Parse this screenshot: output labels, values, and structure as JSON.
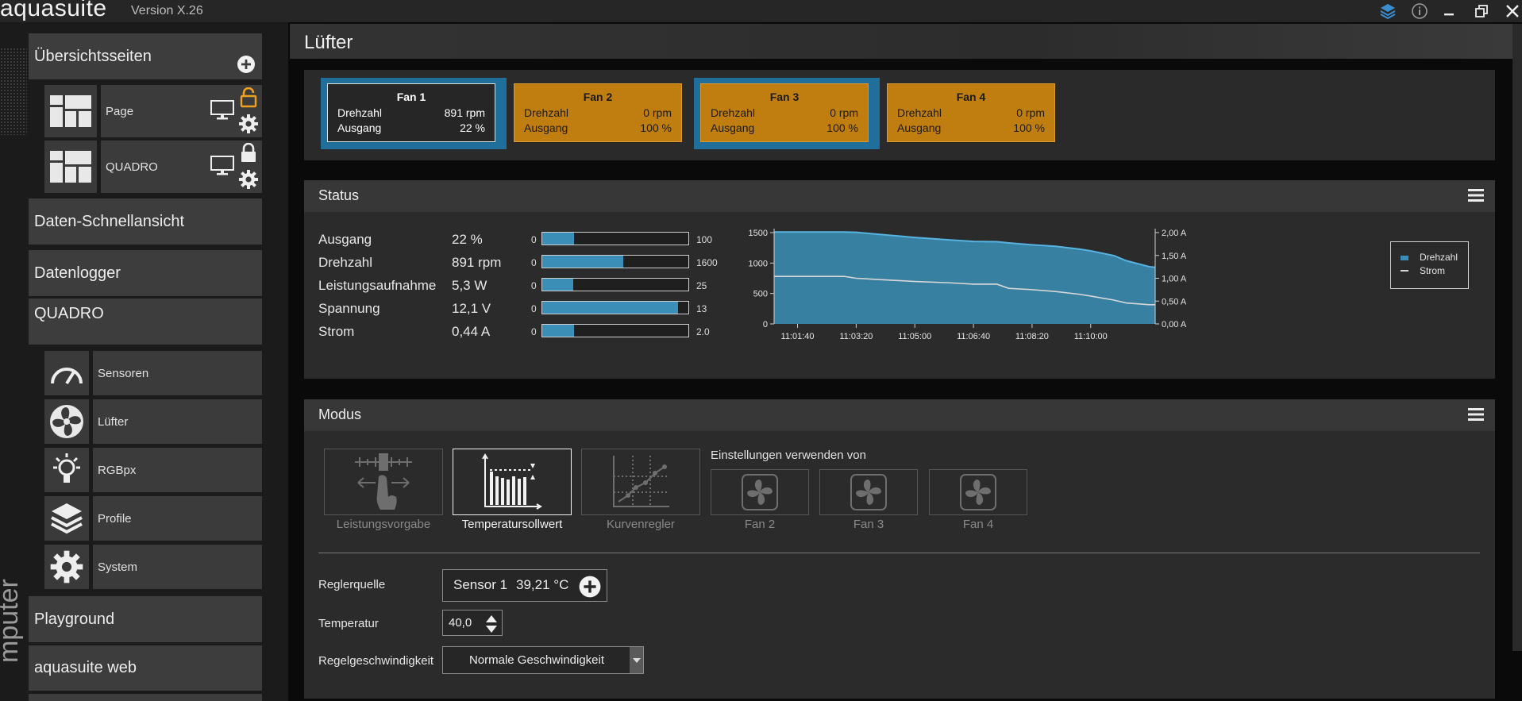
{
  "app": {
    "name": "aquasuite",
    "version": "Version X.26"
  },
  "side_vertical_label": "mputer",
  "sidebar": {
    "overview_title": "Übersichtsseiten",
    "pages": [
      {
        "label": "Page",
        "lock": "unlocked"
      },
      {
        "label": "QUADRO",
        "lock": "locked"
      }
    ],
    "sections": {
      "quick_view": "Daten-Schnellansicht",
      "datalogger": "Datenlogger",
      "device": "QUADRO",
      "playground": "Playground",
      "web": "aquasuite web"
    },
    "device_items": [
      {
        "label": "Sensoren",
        "icon": "gauge-icon"
      },
      {
        "label": "Lüfter",
        "icon": "fan-icon"
      },
      {
        "label": "RGBpx",
        "icon": "lightbulb-icon"
      },
      {
        "label": "Profile",
        "icon": "layers-icon"
      },
      {
        "label": "System",
        "icon": "gear-icon"
      }
    ]
  },
  "page_title": "Lüfter",
  "fans": [
    {
      "name": "Fan 1",
      "speed_label": "Drehzahl",
      "speed": "891 rpm",
      "output_label": "Ausgang",
      "output": "22 %",
      "selected": true
    },
    {
      "name": "Fan 2",
      "speed_label": "Drehzahl",
      "speed": "0 rpm",
      "output_label": "Ausgang",
      "output": "100 %",
      "selected": false
    },
    {
      "name": "Fan 3",
      "speed_label": "Drehzahl",
      "speed": "0 rpm",
      "output_label": "Ausgang",
      "output": "100 %",
      "selected": false
    },
    {
      "name": "Fan 4",
      "speed_label": "Drehzahl",
      "speed": "0 rpm",
      "output_label": "Ausgang",
      "output": "100 %",
      "selected": false
    }
  ],
  "status": {
    "title": "Status",
    "rows": [
      {
        "name": "Ausgang",
        "value": "22 %",
        "min": "0",
        "max": "100",
        "fraction": 0.22
      },
      {
        "name": "Drehzahl",
        "value": "891 rpm",
        "min": "0",
        "max": "1600",
        "fraction": 0.557
      },
      {
        "name": "Leistungsaufnahme",
        "value": "5,3 W",
        "min": "0",
        "max": "25",
        "fraction": 0.212
      },
      {
        "name": "Spannung",
        "value": "12,1 V",
        "min": "0",
        "max": "13",
        "fraction": 0.93
      },
      {
        "name": "Strom",
        "value": "0,44 A",
        "min": "0",
        "max": "2.0",
        "fraction": 0.22
      }
    ]
  },
  "chart_data": {
    "type": "area",
    "x": [
      "11:01:00",
      "11:02:00",
      "11:03:00",
      "11:03:20",
      "11:04:00",
      "11:05:00",
      "11:06:00",
      "11:06:40",
      "11:07:20",
      "11:07:40",
      "11:08:20",
      "11:09:00",
      "11:09:40",
      "11:10:00",
      "11:10:40",
      "11:11:00",
      "11:11:40",
      "11:11:50"
    ],
    "x_tick_labels": [
      "11:01:40",
      "11:03:20",
      "11:05:00",
      "11:06:40",
      "11:08:20",
      "11:10:00"
    ],
    "series": [
      {
        "name": "Drehzahl",
        "axis": "left",
        "color": "#3b8fb7",
        "values": [
          1510,
          1510,
          1510,
          1505,
          1470,
          1420,
          1380,
          1355,
          1350,
          1330,
          1300,
          1275,
          1230,
          1200,
          1120,
          1040,
          940,
          930
        ]
      },
      {
        "name": "Strom",
        "axis": "right",
        "color": "#d8d8d8",
        "values": [
          1.04,
          1.04,
          1.04,
          1.0,
          0.97,
          0.93,
          0.9,
          0.87,
          0.87,
          0.78,
          0.75,
          0.71,
          0.65,
          0.61,
          0.52,
          0.46,
          0.42,
          0.42
        ]
      }
    ],
    "y_left_ticks": [
      "0",
      "500",
      "1000",
      "1500"
    ],
    "y_left_range": [
      0,
      1500
    ],
    "y_right_ticks": [
      "0,00 A",
      "0,50 A",
      "1,00 A",
      "1,50 A",
      "2,00 A"
    ],
    "y_right_range": [
      0,
      2
    ],
    "legend": [
      "Drehzahl",
      "Strom"
    ],
    "legend_position": "right"
  },
  "mode": {
    "title": "Modus",
    "options": [
      {
        "label": "Leistungsvorgabe",
        "icon": "power-slider-icon",
        "active": false
      },
      {
        "label": "Temperatursollwert",
        "icon": "target-temperature-icon",
        "active": true
      },
      {
        "label": "Kurvenregler",
        "icon": "curve-icon",
        "active": false
      }
    ],
    "use_settings_label": "Einstellungen verwenden von",
    "sources": [
      "Fan 2",
      "Fan 3",
      "Fan 4"
    ],
    "controller_source_label": "Reglerquelle",
    "controller_source_name": "Sensor 1",
    "controller_source_value": "39,21 °C",
    "temperature_label": "Temperatur",
    "temperature_value": "40,0",
    "speed_label": "Regelgeschwindigkeit",
    "speed_value": "Normale Geschwindigkeit"
  },
  "colors": {
    "accent": "#3b8fb7",
    "selected_card_frame": "#1f6f9a",
    "inactive_card": "#c07d10"
  }
}
